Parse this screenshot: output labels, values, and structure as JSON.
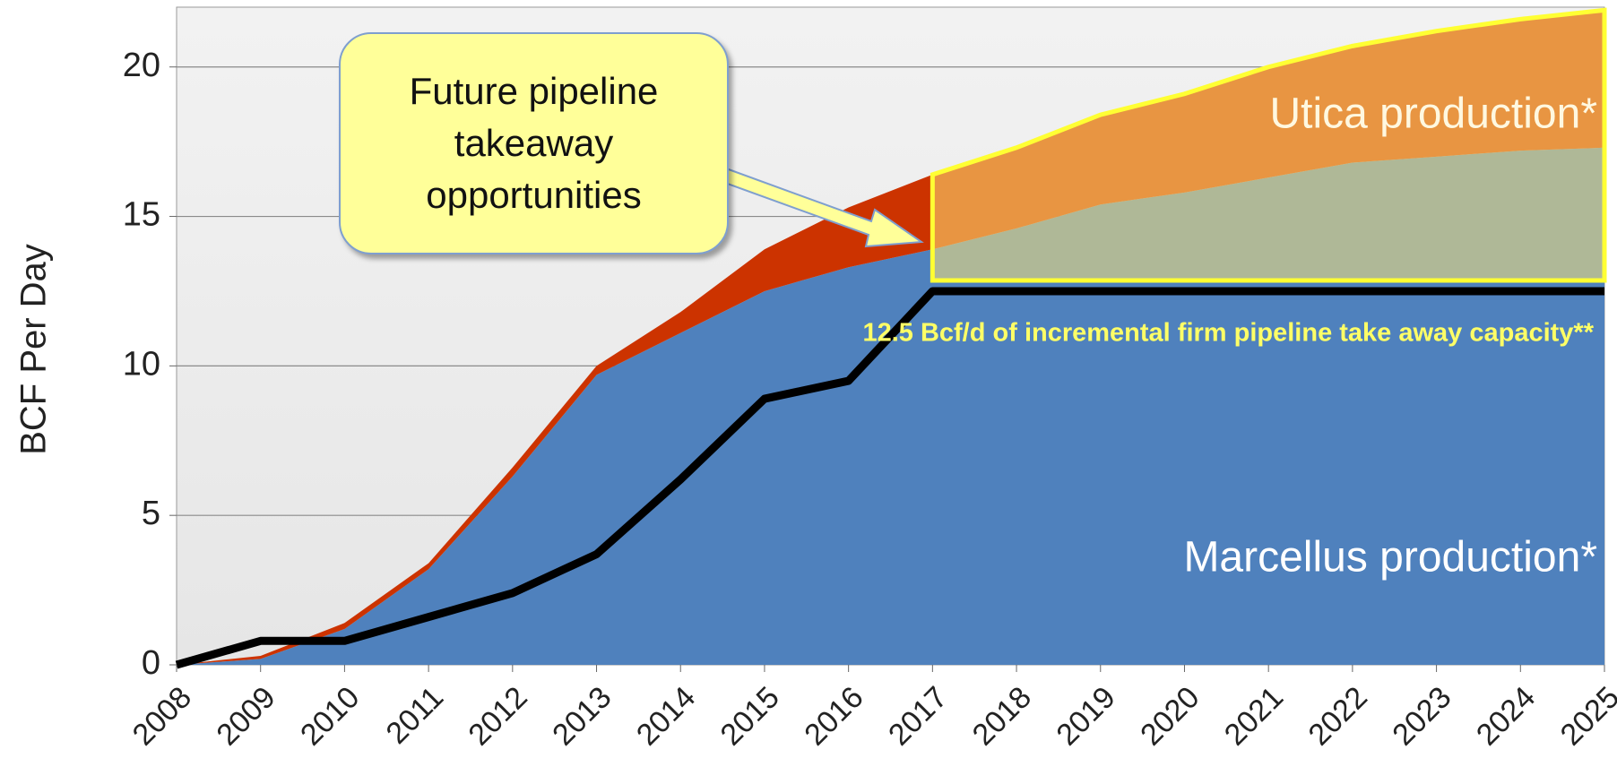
{
  "chart_data": {
    "type": "stacked-area",
    "y_label": "BCF Per Day",
    "categories": [
      "2008",
      "2009",
      "2010",
      "2011",
      "2012",
      "2013",
      "2014",
      "2015",
      "2016",
      "2017",
      "2018",
      "2019",
      "2020",
      "2021",
      "2022",
      "2023",
      "2024",
      "2025"
    ],
    "series": [
      {
        "name": "Marcellus production*",
        "color": "#4f81bd",
        "values": [
          0,
          0.2,
          1.2,
          3.2,
          6.3,
          9.7,
          11.1,
          12.5,
          13.3,
          13.9,
          14.6,
          15.4,
          15.8,
          16.3,
          16.8,
          17.0,
          17.2,
          17.3
        ]
      },
      {
        "name": "Utica production*",
        "color": "#cc3300",
        "values": [
          0,
          0.1,
          0.2,
          0.2,
          0.3,
          0.3,
          0.7,
          1.4,
          2.0,
          2.5,
          2.7,
          3.0,
          3.3,
          3.7,
          3.9,
          4.2,
          4.4,
          4.6
        ]
      }
    ],
    "capacity": {
      "color": "#000000",
      "values": [
        0,
        0.8,
        0.8,
        1.6,
        2.4,
        3.7,
        6.2,
        8.9,
        9.5,
        12.5,
        12.5,
        12.5,
        12.5,
        12.5,
        12.5,
        12.5,
        12.5,
        12.5
      ]
    },
    "capacity_label": "12.5 Bcf/d of incremental firm pipeline take away capacity**",
    "callout": "Future pipeline takeaway opportunities",
    "ylim": [
      0,
      22
    ],
    "yticks": [
      0,
      5,
      10,
      15,
      20
    ],
    "grid": true
  }
}
